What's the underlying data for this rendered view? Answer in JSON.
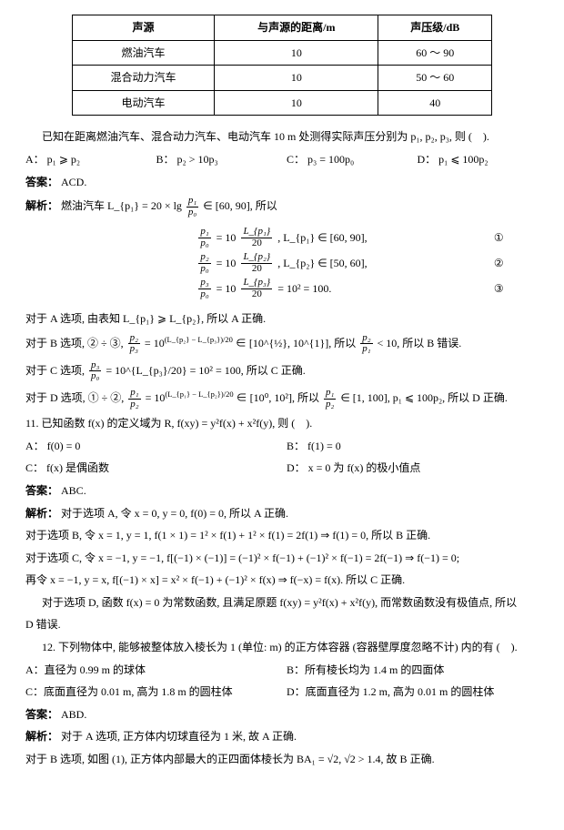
{
  "table": {
    "columns": [
      "声源",
      "与声源的距离/m",
      "声压级/dB"
    ],
    "rows": [
      [
        "燃油汽车",
        "10",
        "60 ～ 90"
      ],
      [
        "混合动力汽车",
        "10",
        "50 ～ 60"
      ],
      [
        "电动汽车",
        "10",
        "40"
      ]
    ],
    "border_color": "#000000",
    "background_color": "#ffffff"
  },
  "q10a": {
    "stem": "已知在距离燃油汽车、混合动力汽车、电动汽车 10 m 处测得实际声压分别为 p₁, p₂, p₃, 则 (　).",
    "optA": "A：  p₁ ⩾ p₂",
    "optB": "B：  p₂ > 10p₃",
    "optC": "C：  p₃ = 100p₀",
    "optD": "D：  p₁ ⩽ 100p₂",
    "answer_label": "答案：",
    "answer": "ACD.",
    "analysis_label": "解析：",
    "analysis_intro": "燃油汽车 L_{p₁} = 20 × lg",
    "analysis_intro_tail": "∈ [60, 90], 所以",
    "eq1_tail": ", L_{p₁} ∈ [60, 90],",
    "eq2_tail": ", L_{p₂} ∈ [50, 60],",
    "eq3_tail": "= 10² = 100.",
    "tag1": "①",
    "tag2": "②",
    "tag3": "③",
    "lineA": "对于 A 选项, 由表知 L_{p₁} ⩾ L_{p₂}, 所以 A 正确.",
    "lineB_head": "对于 B 选项, ② ÷ ③,",
    "lineB_mid1": "= 10",
    "lineB_exp": "(L_{p₂} − L_{p₃})/20",
    "lineB_mid2": "∈ [10^{½}, 10^{1}], 所以",
    "lineB_tail": "< 10, 所以 B 错误.",
    "lineC_head": "对于 C 选项,",
    "lineC_tail": "= 10^{L_{p₃}/20} = 10² = 100, 所以 C 正确.",
    "lineD_head": "对于 D 选项, ① ÷ ②,",
    "lineD_mid1": "= 10",
    "lineD_exp": "(L_{p₁} − L_{p₂})/20",
    "lineD_mid2": "∈ [10⁰, 10²], 所以",
    "lineD_tail": "∈ [1, 100], p₁ ⩽ 100p₂, 所以 D 正确."
  },
  "q11": {
    "stem": "11. 已知函数 f(x) 的定义域为 R, f(xy) = y²f(x) + x²f(y), 则 (　).",
    "optA": "A：  f(0) = 0",
    "optB": "B：  f(1) = 0",
    "optC": "C：  f(x) 是偶函数",
    "optD": "D：  x = 0 为 f(x) 的极小值点",
    "answer_label": "答案：",
    "answer": "ABC.",
    "analysis_label": "解析：",
    "lineA": "对于选项 A, 令 x = 0, y = 0, f(0) = 0, 所以 A 正确.",
    "lineB": "对于选项 B, 令 x = 1, y = 1, f(1 × 1) = 1² × f(1) + 1² × f(1) = 2f(1) ⇒ f(1) = 0, 所以 B 正确.",
    "lineC1": "对于选项 C, 令 x = −1, y = −1, f[(−1) × (−1)] = (−1)² × f(−1) + (−1)² × f(−1) = 2f(−1) ⇒ f(−1) = 0;",
    "lineC2": "再令 x = −1, y = x, f[(−1) × x] = x² × f(−1) + (−1)² × f(x) ⇒ f(−x) = f(x). 所以 C 正确.",
    "lineD1": "对于选项 D, 函数 f(x) = 0 为常数函数, 且满足原题 f(xy) = y²f(x) + x²f(y), 而常数函数没有极值点, 所以",
    "lineD2": "D 错误."
  },
  "q12": {
    "stem": "12. 下列物体中, 能够被整体放入棱长为 1 (单位: m) 的正方体容器 (容器壁厚度忽略不计) 内的有 (　).",
    "optA": "A：直径为 0.99 m 的球体",
    "optB": "B：所有棱长均为 1.4 m 的四面体",
    "optC": "C：底面直径为 0.01 m, 高为 1.8 m 的圆柱体",
    "optD": "D：底面直径为 1.2 m, 高为 0.01 m 的圆柱体",
    "answer_label": "答案：",
    "answer": "ABD.",
    "analysis_label": "解析：",
    "lineA": "对于 A 选项, 正方体内切球直径为 1 米, 故 A 正确.",
    "lineB": "对于 B 选项, 如图 (1), 正方体内部最大的正四面体棱长为 BA₁ = √2, √2 > 1.4, 故 B 正确."
  }
}
